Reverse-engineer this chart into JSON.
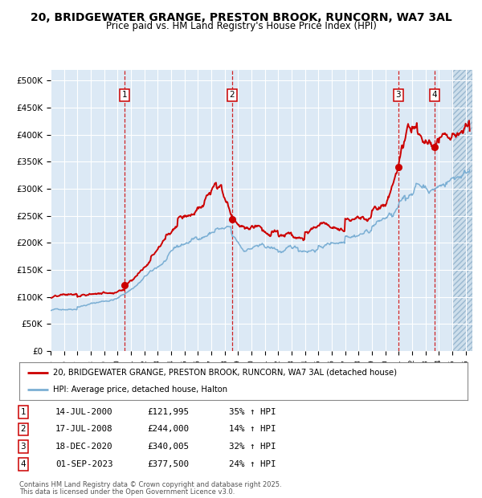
{
  "title1": "20, BRIDGEWATER GRANGE, PRESTON BROOK, RUNCORN, WA7 3AL",
  "title2": "Price paid vs. HM Land Registry's House Price Index (HPI)",
  "title_fontsize": 10,
  "subtitle_fontsize": 8.5,
  "xlim": [
    1995.0,
    2026.5
  ],
  "ylim": [
    0,
    520000
  ],
  "yticks": [
    0,
    50000,
    100000,
    150000,
    200000,
    250000,
    300000,
    350000,
    400000,
    450000,
    500000
  ],
  "ytick_labels": [
    "£0",
    "£50K",
    "£100K",
    "£150K",
    "£200K",
    "£250K",
    "£300K",
    "£350K",
    "£400K",
    "£450K",
    "£500K"
  ],
  "xtick_years": [
    1995,
    1996,
    1997,
    1998,
    1999,
    2000,
    2001,
    2002,
    2003,
    2004,
    2005,
    2006,
    2007,
    2008,
    2009,
    2010,
    2011,
    2012,
    2013,
    2014,
    2015,
    2016,
    2017,
    2018,
    2019,
    2020,
    2021,
    2022,
    2023,
    2024,
    2025,
    2026
  ],
  "background_color": "#dce9f5",
  "plot_bg_color": "#dce9f5",
  "grid_color": "#ffffff",
  "red_line_color": "#cc0000",
  "blue_line_color": "#7bafd4",
  "sale_marker_color": "#cc0000",
  "vline_color": "#cc0000",
  "purchases": [
    {
      "date_year": 2000.54,
      "price": 121995,
      "label": "1"
    },
    {
      "date_year": 2008.54,
      "price": 244000,
      "label": "2"
    },
    {
      "date_year": 2020.96,
      "price": 340005,
      "label": "3"
    },
    {
      "date_year": 2023.67,
      "price": 377500,
      "label": "4"
    }
  ],
  "purchase_dates_str": [
    "14-JUL-2000",
    "17-JUL-2008",
    "18-DEC-2020",
    "01-SEP-2023"
  ],
  "purchase_prices_str": [
    "£121,995",
    "£244,000",
    "£340,005",
    "£377,500"
  ],
  "purchase_pct_str": [
    "35% ↑ HPI",
    "14% ↑ HPI",
    "32% ↑ HPI",
    "24% ↑ HPI"
  ],
  "legend_line1": "20, BRIDGEWATER GRANGE, PRESTON BROOK, RUNCORN, WA7 3AL (detached house)",
  "legend_line2": "HPI: Average price, detached house, Halton",
  "footer1": "Contains HM Land Registry data © Crown copyright and database right 2025.",
  "footer2": "This data is licensed under the Open Government Licence v3.0.",
  "hatch_start": 2025.0
}
